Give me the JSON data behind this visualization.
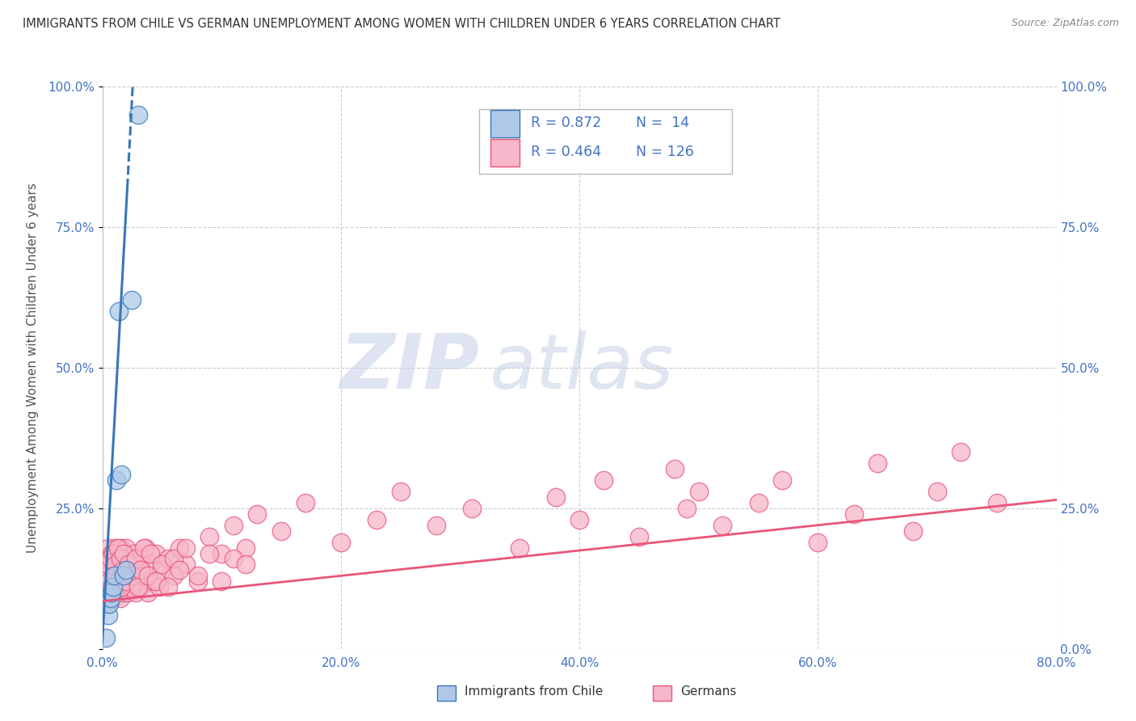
{
  "title": "IMMIGRANTS FROM CHILE VS GERMAN UNEMPLOYMENT AMONG WOMEN WITH CHILDREN UNDER 6 YEARS CORRELATION CHART",
  "source": "Source: ZipAtlas.com",
  "ylabel": "Unemployment Among Women with Children Under 6 years",
  "xlim": [
    0,
    0.8
  ],
  "ylim": [
    0,
    1.0
  ],
  "xticks": [
    0.0,
    0.2,
    0.4,
    0.6,
    0.8
  ],
  "xticklabels": [
    "0.0%",
    "20.0%",
    "40.0%",
    "60.0%",
    "80.0%"
  ],
  "yticks_left": [
    0.0,
    0.25,
    0.5,
    0.75,
    1.0
  ],
  "yticklabels_left": [
    "",
    "25.0%",
    "50.0%",
    "75.0%",
    "100.0%"
  ],
  "yticks_right": [
    0.0,
    0.25,
    0.5,
    0.75,
    1.0
  ],
  "yticklabels_right": [
    "0.0%",
    "25.0%",
    "50.0%",
    "75.0%",
    "100.0%"
  ],
  "legend_R1": "R = 0.872",
  "legend_N1": "N =  14",
  "legend_R2": "R = 0.464",
  "legend_N2": "N = 126",
  "blue_fill": "#aec9e8",
  "pink_fill": "#f7b6c9",
  "blue_edge": "#3976b8",
  "pink_edge": "#e8567a",
  "title_color": "#333333",
  "source_color": "#888888",
  "axis_label_color": "#555555",
  "tick_color": "#4472C4",
  "grid_color": "#cccccc",
  "watermark_zip": "ZIP",
  "watermark_atlas": "atlas",
  "blue_scatter_x": [
    0.003,
    0.005,
    0.006,
    0.007,
    0.008,
    0.009,
    0.01,
    0.012,
    0.014,
    0.016,
    0.018,
    0.02,
    0.025,
    0.03
  ],
  "blue_scatter_y": [
    0.02,
    0.06,
    0.08,
    0.09,
    0.1,
    0.11,
    0.13,
    0.3,
    0.6,
    0.31,
    0.13,
    0.14,
    0.62,
    0.95
  ],
  "pink_scatter_x": [
    0.003,
    0.004,
    0.004,
    0.005,
    0.005,
    0.005,
    0.006,
    0.006,
    0.007,
    0.007,
    0.008,
    0.008,
    0.009,
    0.009,
    0.01,
    0.01,
    0.011,
    0.011,
    0.012,
    0.013,
    0.013,
    0.014,
    0.014,
    0.015,
    0.015,
    0.016,
    0.016,
    0.017,
    0.017,
    0.018,
    0.018,
    0.019,
    0.02,
    0.02,
    0.021,
    0.021,
    0.022,
    0.023,
    0.024,
    0.025,
    0.026,
    0.027,
    0.028,
    0.03,
    0.031,
    0.032,
    0.033,
    0.035,
    0.036,
    0.038,
    0.04,
    0.042,
    0.045,
    0.048,
    0.05,
    0.055,
    0.06,
    0.065,
    0.07,
    0.08,
    0.09,
    0.1,
    0.11,
    0.12,
    0.13,
    0.15,
    0.17,
    0.2,
    0.23,
    0.25,
    0.28,
    0.31,
    0.35,
    0.38,
    0.4,
    0.42,
    0.45,
    0.48,
    0.49,
    0.5,
    0.52,
    0.55,
    0.57,
    0.6,
    0.63,
    0.65,
    0.68,
    0.7,
    0.72,
    0.75,
    0.003,
    0.004,
    0.005,
    0.006,
    0.007,
    0.008,
    0.009,
    0.01,
    0.011,
    0.012,
    0.013,
    0.014,
    0.015,
    0.016,
    0.017,
    0.018,
    0.02,
    0.022,
    0.025,
    0.028,
    0.03,
    0.032,
    0.035,
    0.038,
    0.04,
    0.045,
    0.05,
    0.055,
    0.06,
    0.065,
    0.07,
    0.08,
    0.09,
    0.1,
    0.11,
    0.12
  ],
  "pink_scatter_y": [
    0.12,
    0.1,
    0.15,
    0.08,
    0.13,
    0.18,
    0.11,
    0.16,
    0.1,
    0.14,
    0.12,
    0.17,
    0.09,
    0.15,
    0.11,
    0.16,
    0.13,
    0.18,
    0.1,
    0.12,
    0.16,
    0.11,
    0.14,
    0.09,
    0.17,
    0.13,
    0.18,
    0.1,
    0.15,
    0.12,
    0.17,
    0.11,
    0.13,
    0.18,
    0.1,
    0.16,
    0.12,
    0.14,
    0.11,
    0.15,
    0.13,
    0.17,
    0.1,
    0.12,
    0.16,
    0.11,
    0.14,
    0.13,
    0.18,
    0.1,
    0.15,
    0.12,
    0.17,
    0.11,
    0.14,
    0.16,
    0.13,
    0.18,
    0.15,
    0.12,
    0.2,
    0.17,
    0.22,
    0.18,
    0.24,
    0.21,
    0.26,
    0.19,
    0.23,
    0.28,
    0.22,
    0.25,
    0.18,
    0.27,
    0.23,
    0.3,
    0.2,
    0.32,
    0.25,
    0.28,
    0.22,
    0.26,
    0.3,
    0.19,
    0.24,
    0.33,
    0.21,
    0.28,
    0.35,
    0.26,
    0.14,
    0.13,
    0.15,
    0.12,
    0.16,
    0.11,
    0.17,
    0.1,
    0.15,
    0.13,
    0.18,
    0.12,
    0.16,
    0.11,
    0.14,
    0.17,
    0.12,
    0.15,
    0.13,
    0.16,
    0.11,
    0.14,
    0.18,
    0.13,
    0.17,
    0.12,
    0.15,
    0.11,
    0.16,
    0.14,
    0.18,
    0.13,
    0.17,
    0.12,
    0.16,
    0.15
  ],
  "blue_trend_x0": 0.0,
  "blue_trend_y0": 0.01,
  "blue_trend_x1": 0.026,
  "blue_trend_y1": 1.0,
  "blue_trend_dash_x0": 0.021,
  "blue_trend_dash_y0": 0.82,
  "blue_trend_dash_x1": 0.026,
  "blue_trend_dash_y1": 1.02,
  "pink_trend_x0": 0.0,
  "pink_trend_y0": 0.085,
  "pink_trend_x1": 0.8,
  "pink_trend_y1": 0.265,
  "figsize": [
    14.06,
    8.92
  ],
  "dpi": 100
}
